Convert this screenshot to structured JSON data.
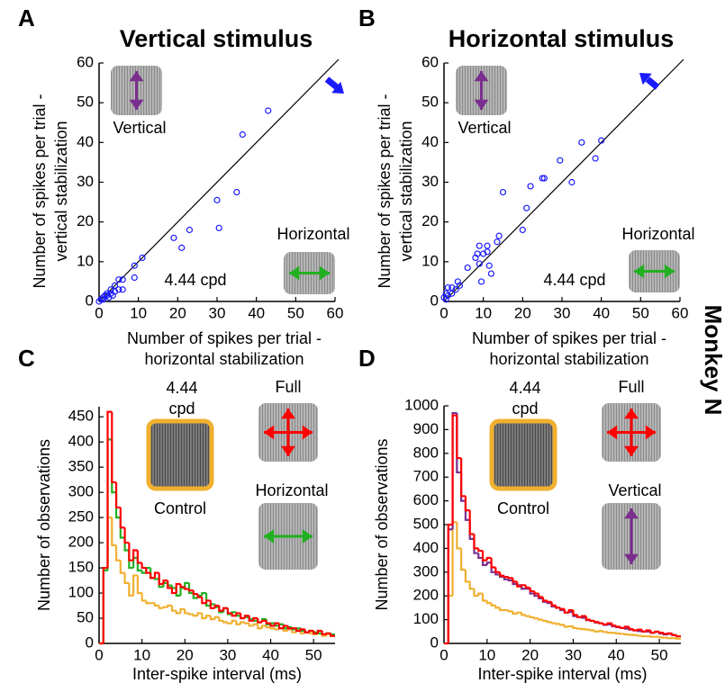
{
  "side_label": "Monkey N",
  "chart_data": [
    {
      "type": "scatter",
      "panel": "A",
      "title": "Vertical stimulus",
      "xlabel": [
        "Number of spikes per trial -",
        "horizontal stabilization"
      ],
      "xlabel_colors": [
        "#000000",
        "#22b022"
      ],
      "ylabel": [
        "Number of spikes per trial -",
        "vertical stabilization"
      ],
      "ylabel_colors": [
        "#000000",
        "#7a2e8e"
      ],
      "x": [
        0,
        0.5,
        1,
        1.5,
        2,
        2.5,
        3,
        3,
        4,
        4,
        5,
        5,
        6,
        6,
        9,
        9,
        11,
        19,
        21,
        23,
        30,
        30.5,
        35,
        36.5,
        43,
        1,
        2,
        3.5
      ],
      "values": [
        0,
        0.5,
        1,
        1.5,
        2,
        1,
        3,
        2,
        2.5,
        4,
        5.5,
        3,
        5.5,
        3,
        9,
        6,
        11,
        16,
        13.5,
        18,
        25.5,
        18.5,
        27.5,
        42,
        48,
        0.5,
        1.5,
        1.5
      ],
      "color": "#1a1aff",
      "xlim": [
        0,
        60
      ],
      "ylim": [
        0,
        60
      ],
      "xticks": [
        0,
        10,
        20,
        30,
        40,
        50,
        60
      ],
      "yticks": [
        0,
        10,
        20,
        30,
        40,
        50,
        60
      ],
      "annotations": [
        {
          "text": "Vertical",
          "color": "#7a2e8e"
        },
        {
          "text": "Horizontal",
          "color": "#22b022"
        },
        {
          "text": "4.44 cpd",
          "color": "#f0b030"
        }
      ]
    },
    {
      "type": "scatter",
      "panel": "B",
      "title": "Horizontal stimulus",
      "xlabel": [
        "Number of spikes per trial -",
        "horizontal stabilization"
      ],
      "xlabel_colors": [
        "#000000",
        "#22b022"
      ],
      "ylabel": [
        "Number of spikes per trial -",
        "vertical stabilization"
      ],
      "ylabel_colors": [
        "#000000",
        "#7a2e8e"
      ],
      "x": [
        0,
        0.5,
        1,
        1,
        2,
        2,
        3,
        4,
        3.5,
        6,
        8,
        8.5,
        9,
        9,
        9.5,
        10,
        11,
        11,
        11.5,
        13.5,
        14,
        15,
        20,
        21,
        22,
        25,
        25.5,
        29.5,
        32.5,
        35,
        38.5,
        40,
        0.5,
        12
      ],
      "values": [
        1,
        2,
        3.5,
        1.5,
        3.5,
        2,
        3,
        4,
        5,
        8.5,
        11,
        12,
        9.5,
        14,
        5,
        12,
        12.5,
        14,
        9,
        15,
        16.5,
        27.5,
        18,
        23.5,
        29,
        31,
        31,
        35.5,
        30,
        40,
        36,
        40.5,
        0.5,
        7
      ],
      "color": "#1a1aff",
      "xlim": [
        0,
        60
      ],
      "ylim": [
        0,
        60
      ],
      "xticks": [
        0,
        10,
        20,
        30,
        40,
        50,
        60
      ],
      "yticks": [
        0,
        10,
        20,
        30,
        40,
        50,
        60
      ],
      "annotations": [
        {
          "text": "Vertical",
          "color": "#7a2e8e"
        },
        {
          "text": "Horizontal",
          "color": "#22b022"
        },
        {
          "text": "4.44 cpd",
          "color": "#f0b030"
        }
      ]
    },
    {
      "type": "histogram",
      "panel": "C",
      "xlabel": "Inter-spike interval (ms)",
      "ylabel": "Number of observations",
      "bins": [
        0,
        1,
        2,
        3,
        4,
        5,
        6,
        7,
        8,
        9,
        10,
        11,
        12,
        13,
        14,
        15,
        16,
        17,
        18,
        19,
        20,
        21,
        22,
        23,
        24,
        25,
        26,
        27,
        28,
        29,
        30,
        31,
        32,
        33,
        34,
        35,
        36,
        37,
        38,
        39,
        40,
        41,
        42,
        43,
        44,
        45,
        46,
        47,
        48,
        49,
        50,
        51,
        52,
        53,
        54,
        55
      ],
      "series": [
        {
          "name": "Full",
          "color": "#ff0000",
          "values": [
            0,
            150,
            460,
            320,
            270,
            230,
            200,
            165,
            185,
            160,
            150,
            140,
            130,
            140,
            118,
            125,
            110,
            100,
            118,
            112,
            108,
            105,
            98,
            92,
            80,
            85,
            70,
            75,
            65,
            70,
            60,
            55,
            60,
            50,
            55,
            45,
            50,
            42,
            45,
            40,
            35,
            40,
            30,
            35,
            30,
            30,
            25,
            28,
            22,
            25,
            20,
            25,
            18,
            20,
            15
          ]
        },
        {
          "name": "Horizontal",
          "color": "#22b022",
          "values": [
            0,
            145,
            405,
            300,
            250,
            210,
            185,
            150,
            170,
            145,
            140,
            150,
            130,
            128,
            112,
            120,
            115,
            110,
            95,
            110,
            120,
            100,
            90,
            95,
            100,
            75,
            78,
            72,
            62,
            70,
            58,
            62,
            55,
            50,
            52,
            48,
            45,
            42,
            48,
            38,
            40,
            35,
            38,
            30,
            32,
            28,
            30,
            25,
            22,
            25,
            22,
            20,
            18,
            20,
            18
          ]
        },
        {
          "name": "Control",
          "color": "#f0b030",
          "values": [
            0,
            150,
            250,
            195,
            165,
            140,
            120,
            95,
            135,
            100,
            85,
            80,
            80,
            75,
            70,
            72,
            75,
            65,
            60,
            68,
            60,
            58,
            55,
            60,
            50,
            55,
            48,
            52,
            45,
            42,
            40,
            45,
            38,
            42,
            40,
            35,
            38,
            30,
            35,
            32,
            30,
            28,
            30,
            25,
            28,
            22,
            25,
            20,
            22,
            20,
            18,
            20,
            15,
            18,
            15
          ]
        }
      ],
      "xlim": [
        0,
        55
      ],
      "ylim": [
        0,
        470
      ],
      "xticks": [
        0,
        10,
        20,
        30,
        40,
        50
      ],
      "yticks": [
        0,
        50,
        100,
        150,
        200,
        250,
        300,
        350,
        400,
        450
      ],
      "annotations": [
        {
          "text": "4.44",
          "color": "#f0b030"
        },
        {
          "text": "cpd",
          "color": "#f0b030"
        }
      ]
    },
    {
      "type": "histogram",
      "panel": "D",
      "xlabel": "Inter-spike interval (ms)",
      "ylabel": "Number of observations",
      "bins": [
        0,
        1,
        2,
        3,
        4,
        5,
        6,
        7,
        8,
        9,
        10,
        11,
        12,
        13,
        14,
        15,
        16,
        17,
        18,
        19,
        20,
        21,
        22,
        23,
        24,
        25,
        26,
        27,
        28,
        29,
        30,
        31,
        32,
        33,
        34,
        35,
        36,
        37,
        38,
        39,
        40,
        41,
        42,
        43,
        44,
        45,
        46,
        47,
        48,
        49,
        50,
        51,
        52,
        53,
        54,
        55
      ],
      "series": [
        {
          "name": "Full",
          "color": "#ff0000",
          "values": [
            0,
            500,
            960,
            780,
            620,
            560,
            460,
            400,
            390,
            350,
            360,
            320,
            300,
            285,
            280,
            275,
            260,
            240,
            245,
            235,
            220,
            210,
            195,
            180,
            175,
            160,
            150,
            145,
            130,
            140,
            120,
            110,
            115,
            100,
            95,
            90,
            85,
            80,
            85,
            75,
            70,
            65,
            70,
            60,
            55,
            58,
            50,
            55,
            45,
            50,
            45,
            40,
            42,
            35,
            30
          ]
        },
        {
          "name": "Vertical",
          "color": "#7a2e8e",
          "values": [
            0,
            480,
            970,
            720,
            600,
            520,
            440,
            380,
            360,
            330,
            340,
            300,
            290,
            280,
            270,
            265,
            250,
            245,
            230,
            230,
            210,
            200,
            190,
            175,
            170,
            155,
            150,
            140,
            130,
            132,
            115,
            110,
            108,
            98,
            95,
            88,
            85,
            78,
            80,
            72,
            68,
            65,
            62,
            58,
            55,
            52,
            50,
            50,
            45,
            48,
            42,
            38,
            40,
            35,
            30
          ]
        },
        {
          "name": "Control",
          "color": "#f0b030",
          "values": [
            0,
            200,
            510,
            400,
            310,
            260,
            230,
            200,
            210,
            180,
            170,
            160,
            150,
            140,
            140,
            135,
            125,
            130,
            120,
            115,
            110,
            105,
            100,
            95,
            90,
            85,
            82,
            78,
            70,
            72,
            65,
            62,
            60,
            58,
            55,
            50,
            52,
            48,
            45,
            44,
            42,
            40,
            38,
            36,
            35,
            32,
            30,
            30,
            28,
            28,
            25,
            24,
            22,
            22,
            20
          ]
        }
      ],
      "xlim": [
        0,
        55
      ],
      "ylim": [
        0,
        1000
      ],
      "xticks": [
        0,
        10,
        20,
        30,
        40,
        50
      ],
      "yticks": [
        0,
        100,
        200,
        300,
        400,
        500,
        600,
        700,
        800,
        900,
        1000
      ],
      "annotations": [
        {
          "text": "4.44",
          "color": "#f0b030"
        },
        {
          "text": "cpd",
          "color": "#f0b030"
        }
      ]
    }
  ]
}
